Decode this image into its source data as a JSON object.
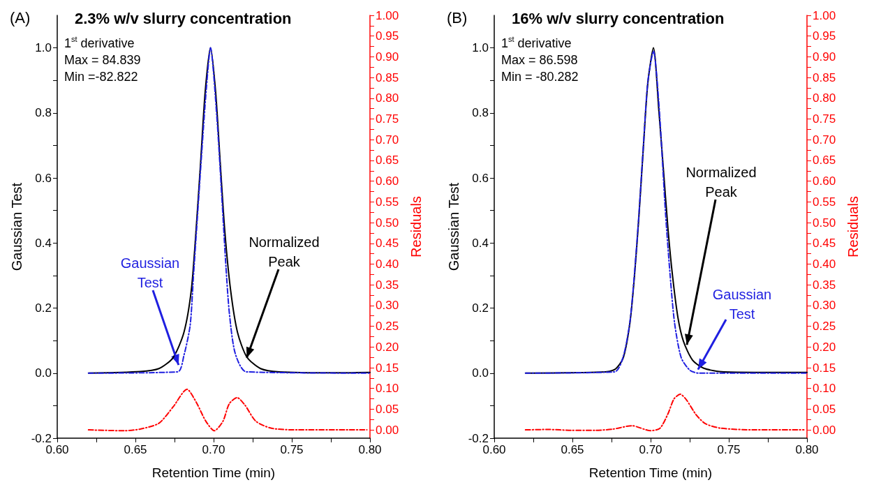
{
  "chart_data": [
    {
      "type": "line",
      "title": "2.3% w/v slurry concentration",
      "xlabel": "Retention Time (min)",
      "ylabel": "Gaussian Test",
      "y2label": "Residuals",
      "annotations": [
        "(A)",
        "1$^{st}$ derivative\nMax = 84.839\nMin =-82.822",
        {
          "text": "Gaussian\nTest",
          "x": 0.6776,
          "y": 0.025
        },
        {
          "text": "Normalized\nPeak",
          "x": 0.7212,
          "y": 0.047
        }
      ],
      "xlim": [
        0.6,
        0.8
      ],
      "xticks": [
        {
          "value": 0.6,
          "label": "0.60"
        },
        {
          "value": 0.625,
          "label": null
        },
        {
          "value": 0.65,
          "label": "0.65"
        },
        {
          "value": 0.675,
          "label": null
        },
        {
          "value": 0.7,
          "label": "0.70"
        },
        {
          "value": 0.725,
          "label": null
        },
        {
          "value": 0.75,
          "label": "0.75"
        },
        {
          "value": 0.775,
          "label": null
        },
        {
          "value": 0.8,
          "label": "0.80"
        }
      ],
      "ylim": [
        -0.2,
        1.1
      ],
      "yticks": [
        {
          "value": -0.2,
          "label": "-0.2"
        },
        {
          "value": -0.1,
          "label": null
        },
        {
          "value": 0,
          "label": "0.0"
        },
        {
          "value": 0.1,
          "label": null
        },
        {
          "value": 0.2,
          "label": "0.2"
        },
        {
          "value": 0.3,
          "label": null
        },
        {
          "value": 0.4,
          "label": "0.4"
        },
        {
          "value": 0.5,
          "label": null
        },
        {
          "value": 0.6,
          "label": "0.6"
        },
        {
          "value": 0.7,
          "label": null
        },
        {
          "value": 0.8,
          "label": "0.8"
        },
        {
          "value": 0.9,
          "label": null
        },
        {
          "value": 1.0,
          "label": "1.0"
        }
      ],
      "y2lim": [
        -0.02,
        1.0
      ],
      "y2ticks": [
        {
          "value": 0,
          "label": "0.00"
        },
        {
          "value": 0.025,
          "label": null
        },
        {
          "value": 0.05,
          "label": "0.05"
        },
        {
          "value": 0.075,
          "label": null
        },
        {
          "value": 0.1,
          "label": "0.10"
        },
        {
          "value": 0.125,
          "label": null
        },
        {
          "value": 0.15,
          "label": "0.15"
        },
        {
          "value": 0.175,
          "label": null
        },
        {
          "value": 0.2,
          "label": "0.20"
        },
        {
          "value": 0.225,
          "label": null
        },
        {
          "value": 0.25,
          "label": "0.25"
        },
        {
          "value": 0.275,
          "label": null
        },
        {
          "value": 0.3,
          "label": "0.30"
        },
        {
          "value": 0.325,
          "label": null
        },
        {
          "value": 0.35,
          "label": "0.35"
        },
        {
          "value": 0.375,
          "label": null
        },
        {
          "value": 0.4,
          "label": "0.40"
        },
        {
          "value": 0.425,
          "label": null
        },
        {
          "value": 0.45,
          "label": "0.45"
        },
        {
          "value": 0.475,
          "label": null
        },
        {
          "value": 0.5,
          "label": "0.50"
        },
        {
          "value": 0.525,
          "label": null
        },
        {
          "value": 0.55,
          "label": "0.55"
        },
        {
          "value": 0.575,
          "label": null
        },
        {
          "value": 0.6,
          "label": "0.60"
        },
        {
          "value": 0.625,
          "label": null
        },
        {
          "value": 0.65,
          "label": "0.65"
        },
        {
          "value": 0.675,
          "label": null
        },
        {
          "value": 0.7,
          "label": "0.70"
        },
        {
          "value": 0.725,
          "label": null
        },
        {
          "value": 0.75,
          "label": "0.75"
        },
        {
          "value": 0.775,
          "label": null
        },
        {
          "value": 0.8,
          "label": "0.80"
        },
        {
          "value": 0.825,
          "label": null
        },
        {
          "value": 0.85,
          "label": "0.85"
        },
        {
          "value": 0.875,
          "label": null
        },
        {
          "value": 0.9,
          "label": "0.90"
        },
        {
          "value": 0.925,
          "label": null
        },
        {
          "value": 0.95,
          "label": "0.95"
        },
        {
          "value": 0.975,
          "label": null
        },
        {
          "value": 1.0,
          "label": "1.00"
        }
      ],
      "grid": false,
      "legend": false,
      "series": [
        {
          "color": "#000000",
          "line_style": "solid",
          "x": [
            0.62,
            0.653,
            0.665,
            0.674,
            0.681,
            0.6857,
            0.6887,
            0.6917,
            0.6946,
            0.698,
            0.7013,
            0.7042,
            0.7072,
            0.7109,
            0.7153,
            0.7212,
            0.73,
            0.742,
            0.777,
            0.8
          ],
          "values": [
            0.0,
            0.005,
            0.014,
            0.047,
            0.125,
            0.254,
            0.434,
            0.649,
            0.864,
            1.0,
            0.864,
            0.649,
            0.434,
            0.254,
            0.125,
            0.05,
            0.014,
            0.004,
            0.001,
            0.002
          ]
        },
        {
          "color": "#1f1fe0",
          "line_style": "dashed",
          "x": [
            0.62,
            0.677,
            0.681,
            0.685,
            0.687,
            0.6895,
            0.6925,
            0.6954,
            0.698,
            0.702,
            0.7057,
            0.7079,
            0.7101,
            0.7138,
            0.721,
            0.8
          ],
          "values": [
            0.0,
            0.004,
            0.054,
            0.147,
            0.29,
            0.47,
            0.685,
            0.878,
            1.0,
            0.792,
            0.505,
            0.326,
            0.183,
            0.061,
            0.004,
            0.0
          ]
        },
        {
          "color": "#ff0000",
          "line_style": "dashed",
          "axis": "y2",
          "x": [
            0.62,
            0.643,
            0.653,
            0.665,
            0.674,
            0.683,
            0.689,
            0.695,
            0.7005,
            0.706,
            0.71,
            0.715,
            0.72,
            0.727,
            0.737,
            0.754,
            0.798
          ],
          "values": [
            0.0,
            -0.002,
            0.002,
            0.016,
            0.055,
            0.098,
            0.066,
            0.021,
            -0.002,
            0.021,
            0.063,
            0.078,
            0.06,
            0.021,
            0.004,
            0.0,
            0.0
          ]
        }
      ]
    },
    {
      "type": "line",
      "title": "16% w/v slurry concentration",
      "xlabel": "Retention Time (min)",
      "ylabel": "Gaussian Test",
      "y2label": "Residuals",
      "annotations": [
        "(B)",
        "1$^{st}$ derivative\nMax = 86.598\nMin = -80.282",
        {
          "text": "Normalized\nPeak",
          "x": 0.7232,
          "y": 0.087
        },
        {
          "text": "Gaussian\nTest",
          "x": 0.7303,
          "y": 0.011
        }
      ],
      "xlim": [
        0.6,
        0.8
      ],
      "xticks": [
        {
          "value": 0.6,
          "label": "0.60"
        },
        {
          "value": 0.625,
          "label": null
        },
        {
          "value": 0.65,
          "label": "0.65"
        },
        {
          "value": 0.675,
          "label": null
        },
        {
          "value": 0.7,
          "label": "0.70"
        },
        {
          "value": 0.725,
          "label": null
        },
        {
          "value": 0.75,
          "label": "0.75"
        },
        {
          "value": 0.775,
          "label": null
        },
        {
          "value": 0.8,
          "label": "0.80"
        }
      ],
      "ylim": [
        -0.2,
        1.1
      ],
      "yticks": [
        {
          "value": -0.2,
          "label": "-0.2"
        },
        {
          "value": -0.1,
          "label": null
        },
        {
          "value": 0,
          "label": "0.0"
        },
        {
          "value": 0.1,
          "label": null
        },
        {
          "value": 0.2,
          "label": "0.2"
        },
        {
          "value": 0.3,
          "label": null
        },
        {
          "value": 0.4,
          "label": "0.4"
        },
        {
          "value": 0.5,
          "label": null
        },
        {
          "value": 0.6,
          "label": "0.6"
        },
        {
          "value": 0.7,
          "label": null
        },
        {
          "value": 0.8,
          "label": "0.8"
        },
        {
          "value": 0.9,
          "label": null
        },
        {
          "value": 1.0,
          "label": "1.0"
        }
      ],
      "y2lim": [
        -0.02,
        1.0
      ],
      "y2ticks": [
        {
          "value": 0,
          "label": "0.00"
        },
        {
          "value": 0.025,
          "label": null
        },
        {
          "value": 0.05,
          "label": "0.05"
        },
        {
          "value": 0.075,
          "label": null
        },
        {
          "value": 0.1,
          "label": "0.10"
        },
        {
          "value": 0.125,
          "label": null
        },
        {
          "value": 0.15,
          "label": "0.15"
        },
        {
          "value": 0.175,
          "label": null
        },
        {
          "value": 0.2,
          "label": "0.20"
        },
        {
          "value": 0.225,
          "label": null
        },
        {
          "value": 0.25,
          "label": "0.25"
        },
        {
          "value": 0.275,
          "label": null
        },
        {
          "value": 0.3,
          "label": "0.30"
        },
        {
          "value": 0.325,
          "label": null
        },
        {
          "value": 0.35,
          "label": "0.35"
        },
        {
          "value": 0.375,
          "label": null
        },
        {
          "value": 0.4,
          "label": "0.40"
        },
        {
          "value": 0.425,
          "label": null
        },
        {
          "value": 0.45,
          "label": "0.45"
        },
        {
          "value": 0.475,
          "label": null
        },
        {
          "value": 0.5,
          "label": "0.50"
        },
        {
          "value": 0.525,
          "label": null
        },
        {
          "value": 0.55,
          "label": "0.55"
        },
        {
          "value": 0.575,
          "label": null
        },
        {
          "value": 0.6,
          "label": "0.60"
        },
        {
          "value": 0.625,
          "label": null
        },
        {
          "value": 0.65,
          "label": "0.65"
        },
        {
          "value": 0.675,
          "label": null
        },
        {
          "value": 0.7,
          "label": "0.70"
        },
        {
          "value": 0.725,
          "label": null
        },
        {
          "value": 0.75,
          "label": "0.75"
        },
        {
          "value": 0.775,
          "label": null
        },
        {
          "value": 0.8,
          "label": "0.80"
        },
        {
          "value": 0.825,
          "label": null
        },
        {
          "value": 0.85,
          "label": "0.85"
        },
        {
          "value": 0.875,
          "label": null
        },
        {
          "value": 0.9,
          "label": "0.90"
        },
        {
          "value": 0.925,
          "label": null
        },
        {
          "value": 0.95,
          "label": "0.95"
        },
        {
          "value": 0.975,
          "label": null
        },
        {
          "value": 1.0,
          "label": "1.00"
        }
      ],
      "grid": false,
      "legend": false,
      "series": [
        {
          "color": "#000000",
          "line_style": "solid",
          "x": [
            0.62,
            0.668,
            0.677,
            0.6825,
            0.6868,
            0.6897,
            0.6925,
            0.6954,
            0.6982,
            0.7018,
            0.7053,
            0.7082,
            0.7111,
            0.714,
            0.7175,
            0.721,
            0.7268,
            0.734,
            0.7468,
            0.8
          ],
          "values": [
            0.0,
            0.003,
            0.011,
            0.047,
            0.156,
            0.3,
            0.48,
            0.697,
            0.891,
            1.0,
            0.805,
            0.625,
            0.444,
            0.3,
            0.17,
            0.098,
            0.04,
            0.015,
            0.004,
            0.002
          ]
        },
        {
          "color": "#1f1fe0",
          "line_style": "dashed",
          "x": [
            0.62,
            0.677,
            0.6825,
            0.6868,
            0.6897,
            0.6925,
            0.6954,
            0.6982,
            0.7018,
            0.7053,
            0.7096,
            0.7125,
            0.7153,
            0.7196,
            0.7253,
            0.731,
            0.8
          ],
          "values": [
            0.0,
            0.004,
            0.051,
            0.159,
            0.307,
            0.487,
            0.7,
            0.895,
            0.99,
            0.827,
            0.487,
            0.3,
            0.155,
            0.047,
            0.008,
            0.0,
            0.0
          ]
        },
        {
          "color": "#ff0000",
          "line_style": "dashed",
          "axis": "y2",
          "x": [
            0.62,
            0.635,
            0.649,
            0.665,
            0.676,
            0.688,
            0.7,
            0.706,
            0.711,
            0.715,
            0.719,
            0.723,
            0.729,
            0.735,
            0.745,
            0.767,
            0.798
          ],
          "values": [
            0.0,
            0.001,
            -0.001,
            -0.001,
            0.002,
            0.01,
            -0.002,
            0.004,
            0.038,
            0.075,
            0.086,
            0.072,
            0.037,
            0.015,
            0.004,
            0.0,
            0.0
          ]
        }
      ]
    }
  ]
}
